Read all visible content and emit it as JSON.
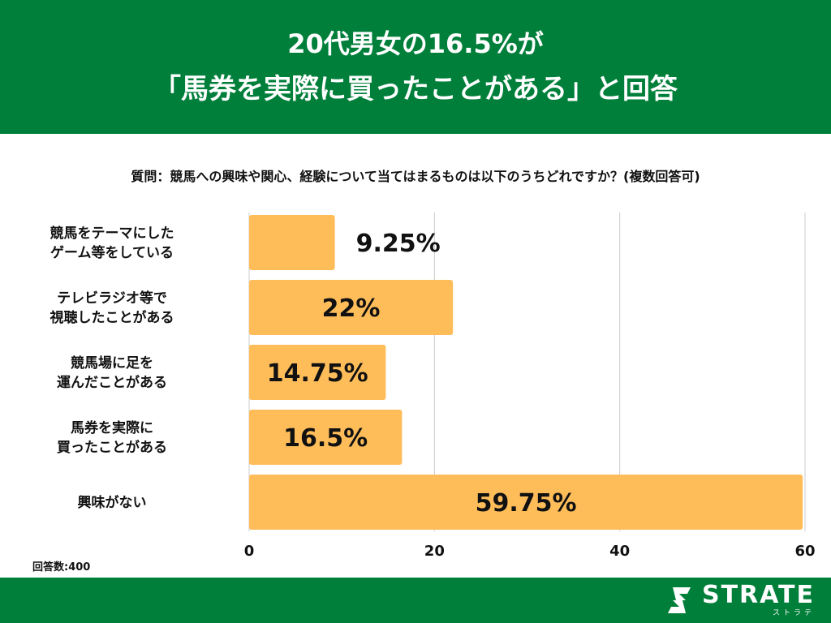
{
  "header": {
    "title_line1": "20代男女の16.5%が",
    "title_line2": "「馬券を実際に買ったことがある」と回答"
  },
  "question": "質問：競馬への興味や関心、経験について当てはまるものは以下のうちどれですか？(複数回答可)",
  "respondents": "回答数:400",
  "brand": {
    "name": "STRATE",
    "sub": "ストラテ"
  },
  "colors": {
    "header_bg": "#007f3a",
    "bar": "#ffbd5a",
    "grid": "#cccccc"
  },
  "chart_data": {
    "type": "bar",
    "orientation": "horizontal",
    "categories": [
      [
        "競馬をテーマにした",
        "ゲーム等をしている"
      ],
      [
        "テレビラジオ等で",
        "視聴したことがある"
      ],
      [
        "競馬場に足を",
        "運んだことがある"
      ],
      [
        "馬券を実際に",
        "買ったことがある"
      ],
      [
        "興味がない"
      ]
    ],
    "values": [
      9.25,
      22,
      14.75,
      16.5,
      59.75
    ],
    "value_labels": [
      "9.25%",
      "22%",
      "14.75%",
      "16.5%",
      "59.75%"
    ],
    "xlim": [
      0,
      60
    ],
    "xticks": [
      0,
      20,
      40,
      60
    ],
    "grid": true
  }
}
